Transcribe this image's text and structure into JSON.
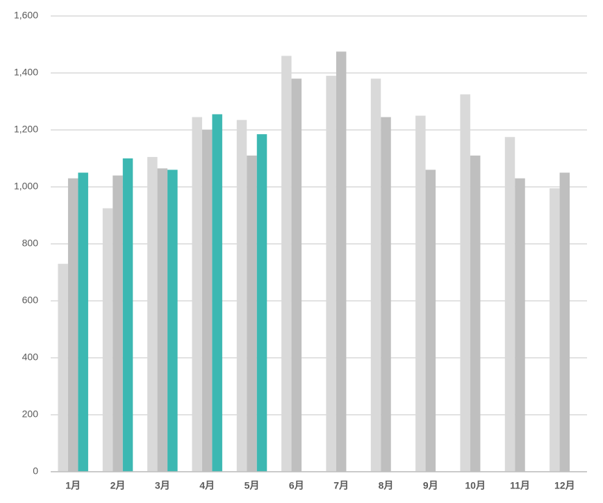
{
  "chart_data": {
    "type": "bar",
    "categories": [
      "1月",
      "2月",
      "3月",
      "4月",
      "5月",
      "6月",
      "7月",
      "8月",
      "9月",
      "10月",
      "11月",
      "12月"
    ],
    "series": [
      {
        "color": "#d9d9d9",
        "values": [
          730,
          925,
          1105,
          1245,
          1235,
          1460,
          1390,
          1380,
          1250,
          1325,
          1175,
          995
        ]
      },
      {
        "color": "#bfbfbf",
        "values": [
          1030,
          1040,
          1065,
          1200,
          1110,
          1380,
          1475,
          1245,
          1060,
          1110,
          1030,
          1050
        ]
      },
      {
        "color": "#3cb8b2",
        "values": [
          1050,
          1100,
          1060,
          1255,
          1185,
          null,
          null,
          null,
          null,
          null,
          null,
          null
        ]
      }
    ],
    "ylim": [
      0,
      1600
    ],
    "yticks": [
      0,
      200,
      400,
      600,
      800,
      {
        "value": 1000,
        "label": "1,000"
      },
      {
        "value": 1200,
        "label": "1,200"
      },
      {
        "value": 1400,
        "label": "1,400"
      },
      {
        "value": 1600,
        "label": "1,600"
      }
    ],
    "grid": true
  }
}
